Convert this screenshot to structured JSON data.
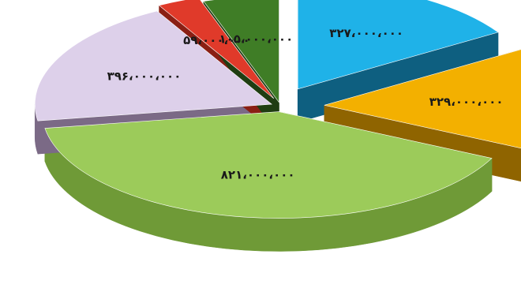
{
  "chart_data": {
    "type": "pie",
    "style": "3d-exploded",
    "labels": [
      "۳۲۷،۰۰۰،۰۰۰",
      "۳۲۹،۰۰۰،۰۰۰",
      "۸۲۱،۰۰۰،۰۰۰",
      "۳۹۶،۰۰۰،۰۰۰",
      "۵۹،۰۰۰،۰۰۰",
      "۱۰۵،۰۰۰،۰۰۰"
    ],
    "values": [
      327000000,
      329000000,
      821000000,
      396000000,
      59000000,
      105000000
    ],
    "colors": [
      "#1fb2e8",
      "#f3b000",
      "#9ccb5a",
      "#ddd0ea",
      "#e03a2a",
      "#3f7d26"
    ],
    "side_colors": [
      "#0e5f80",
      "#8f6400",
      "#6f9a37",
      "#7b6a86",
      "#8a1f14",
      "#1f3d12"
    ],
    "label_colors": [
      "#1a1a1a",
      "#1a1a1a",
      "#1a1a1a",
      "#1a1a1a",
      "#1a1a1a",
      "#1a1a1a"
    ]
  }
}
